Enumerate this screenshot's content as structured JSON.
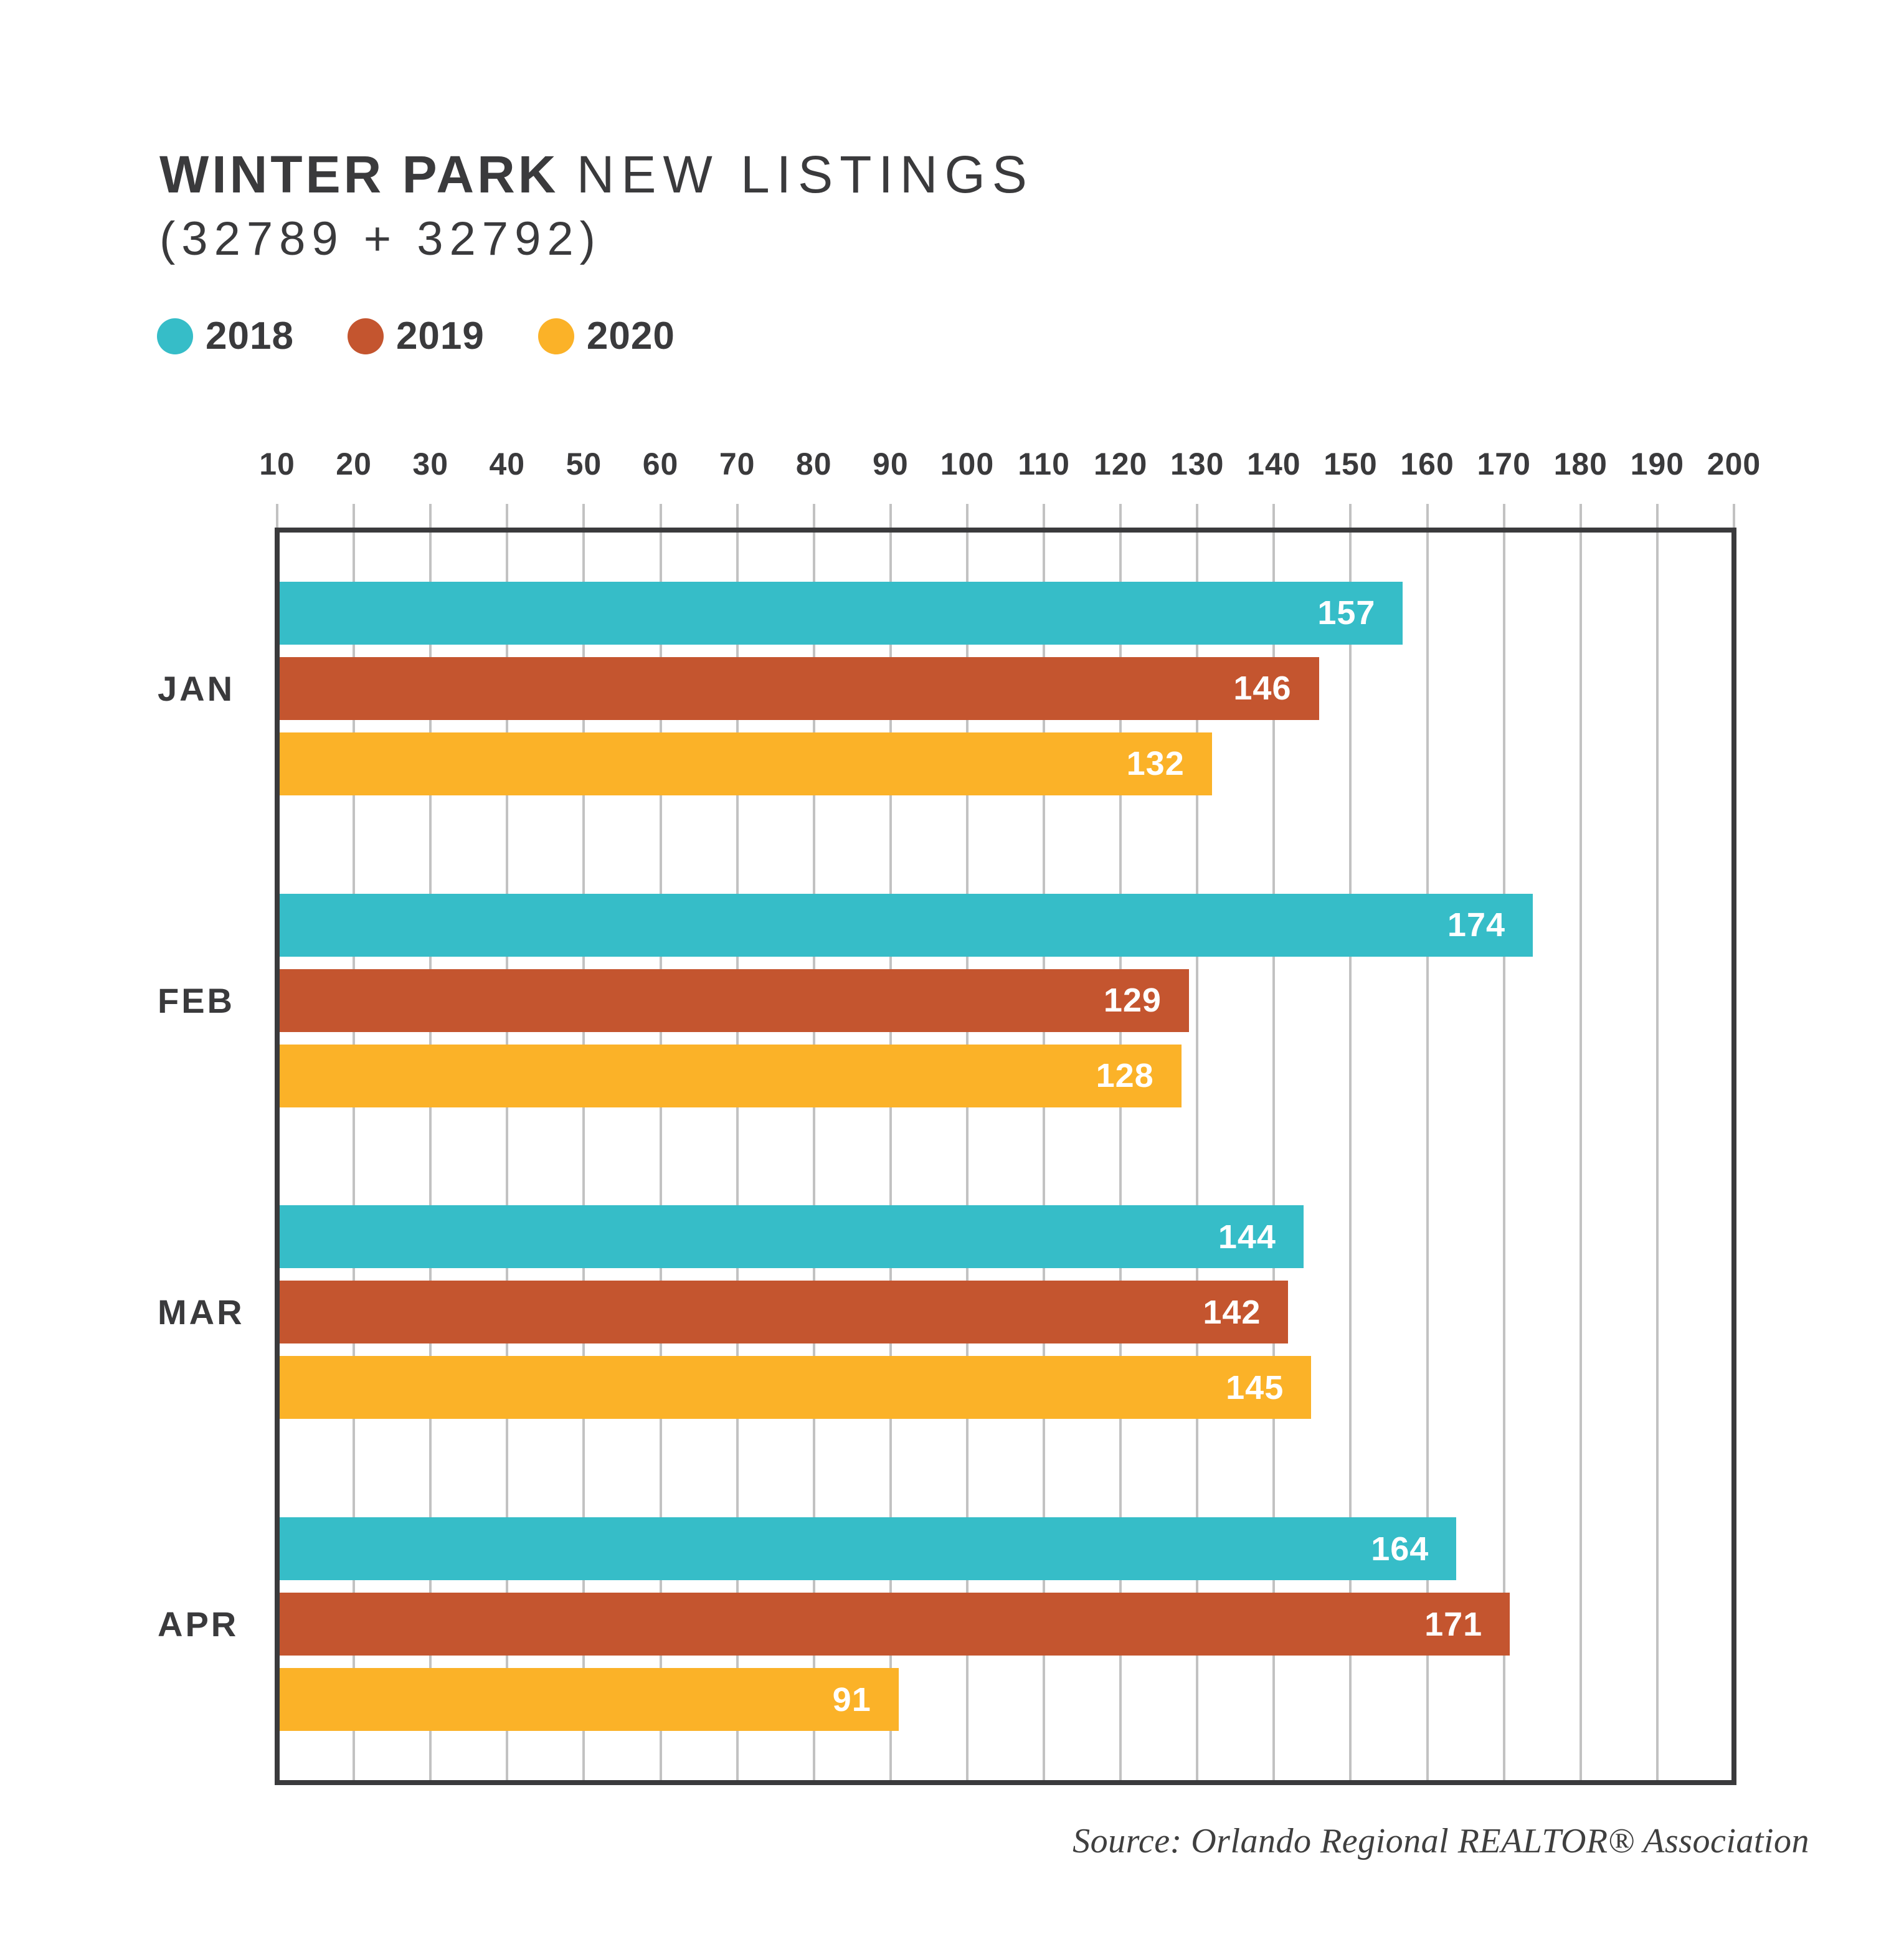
{
  "title": {
    "line1_strong": "WINTER PARK",
    "line1_rest": "NEW LISTINGS",
    "line2": "(32789 + 32792)"
  },
  "legend": {
    "items": [
      {
        "label": "2018",
        "color": "#36BDC8"
      },
      {
        "label": "2019",
        "color": "#C4552F"
      },
      {
        "label": "2020",
        "color": "#FBB228"
      }
    ]
  },
  "source": "Source: Orlando Regional REALTOR® Association",
  "colors": {
    "text": "#3A3A3C",
    "grid": "#C2C2C2",
    "background": "#FFFFFF",
    "bar_value_label": "#FFFFFF",
    "series_2018": "#36BDC8",
    "series_2019": "#C4552F",
    "series_2020": "#FBB228"
  },
  "chart_data": {
    "type": "bar",
    "orientation": "horizontal",
    "title": "WINTER PARK NEW LISTINGS (32789 + 32792)",
    "categories": [
      "JAN",
      "FEB",
      "MAR",
      "APR"
    ],
    "series": [
      {
        "name": "2018",
        "color": "#36BDC8",
        "values": [
          157,
          174,
          144,
          164
        ]
      },
      {
        "name": "2019",
        "color": "#C4552F",
        "values": [
          146,
          129,
          142,
          171
        ]
      },
      {
        "name": "2020",
        "color": "#FBB228",
        "values": [
          132,
          128,
          145,
          91
        ]
      }
    ],
    "x_axis": {
      "min": 10,
      "max": 200,
      "tick_step": 10,
      "ticks": [
        10,
        20,
        30,
        40,
        50,
        60,
        70,
        80,
        90,
        100,
        110,
        120,
        130,
        140,
        150,
        160,
        170,
        180,
        190,
        200
      ],
      "ticks_position": "top"
    },
    "grid": true,
    "legend_position": "top-left",
    "value_labels": "inside-end"
  }
}
